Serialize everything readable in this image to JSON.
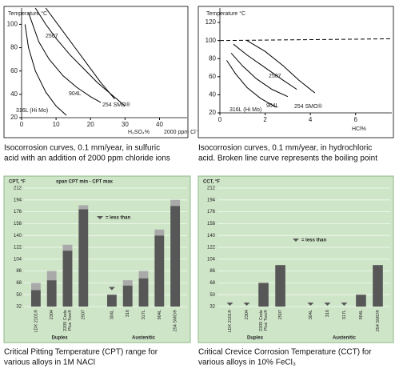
{
  "chart_data": [
    {
      "type": "line",
      "ylabel": "Temperature °C",
      "xlabel": "H₂SO₄%",
      "xlabel2": "2000 ppm Cl⁻",
      "xlim": [
        0,
        48
      ],
      "ylim": [
        20,
        114
      ],
      "xticks": [
        0,
        10,
        20,
        30,
        40
      ],
      "yticks": [
        20,
        40,
        60,
        80,
        100
      ],
      "caption": [
        "Isocorrosion curves, 0.1 mm/year, in sulfuric",
        "acid with an addition of 2000 ppm chloride ions"
      ],
      "series": [
        {
          "name": "2507",
          "color": "#000000",
          "x": [
            4,
            7,
            10,
            14,
            18,
            22,
            26,
            30
          ],
          "values": [
            114,
            100,
            88,
            74,
            62,
            50,
            40,
            30
          ]
        },
        {
          "name": "904L",
          "color": "#000000",
          "x": [
            2,
            5,
            8,
            12,
            16,
            20,
            23
          ],
          "values": [
            110,
            85,
            70,
            56,
            46,
            38,
            33
          ]
        },
        {
          "name": "316L (Hi Mo)",
          "color": "#000000",
          "x": [
            1,
            2,
            4,
            7,
            10,
            13
          ],
          "values": [
            100,
            80,
            60,
            42,
            30,
            22
          ]
        },
        {
          "name": "254 SMO®",
          "color": "#000000",
          "x": [
            7,
            11,
            15,
            19,
            23,
            27
          ],
          "values": [
            114,
            98,
            82,
            66,
            50,
            36
          ]
        }
      ]
    },
    {
      "type": "line",
      "ylabel": "Temperature °C",
      "xlabel": "HCl%",
      "xlim": [
        0,
        7.6
      ],
      "ylim": [
        20,
        136
      ],
      "xticks": [
        0,
        2,
        4,
        6
      ],
      "yticks": [
        20,
        40,
        60,
        80,
        100,
        120
      ],
      "caption": [
        "Isocorrosion curves, 0.1 mm/year, in hydrochloric",
        "acid. Broken line curve represents the boiling point"
      ],
      "series": [
        {
          "color": "#000000",
          "dashed": true,
          "x": [
            0,
            2,
            4,
            6,
            7.6
          ],
          "values": [
            100,
            100.5,
            101,
            101.5,
            102
          ]
        },
        {
          "name": "2507",
          "color": "#000000",
          "x": [
            0.6,
            1.2,
            2,
            2.8,
            3.4
          ],
          "values": [
            96,
            84,
            70,
            56,
            46
          ]
        },
        {
          "name": "904L",
          "color": "#000000",
          "x": [
            0.5,
            1,
            1.6,
            2.3,
            3
          ],
          "values": [
            86,
            72,
            58,
            46,
            38
          ]
        },
        {
          "name": "316L (Hi Mo)",
          "color": "#000000",
          "x": [
            0.3,
            0.7,
            1.2,
            1.8,
            2.5
          ],
          "values": [
            78,
            63,
            48,
            36,
            26
          ]
        },
        {
          "name": "254 SMO®",
          "color": "#000000",
          "x": [
            1.2,
            2,
            2.8,
            3.5,
            4.2
          ],
          "values": [
            100,
            88,
            72,
            56,
            42
          ]
        }
      ]
    },
    {
      "type": "bar",
      "ylabel": "CPT, °F",
      "span_label": "span CPT min - CPT max",
      "less_than_label": "= less than",
      "color": "#575757",
      "range_color": "#a9a9a9",
      "ylim": [
        32,
        212
      ],
      "yticks": [
        32,
        50,
        68,
        86,
        104,
        122,
        140,
        158,
        176,
        194,
        212
      ],
      "caption": [
        "Critical Pitting Temperature (CPT) range for",
        "various alloys in 1M NACl"
      ],
      "groups": [
        {
          "name": "Duplex",
          "categories": [
            "LDX 2101®",
            "2304",
            [
              "2205 Code",
              "Plus Two®"
            ],
            "2507"
          ],
          "values": [
            57,
            72,
            117,
            180
          ],
          "max_values": [
            68,
            86,
            126,
            186
          ],
          "less_than": [
            false,
            false,
            false,
            false
          ]
        },
        {
          "name": "Austenitic",
          "categories": [
            "304L",
            "316",
            "317L",
            "904L",
            "254 SMO®"
          ],
          "values": [
            50,
            64,
            75,
            140,
            185
          ],
          "max_values": [
            57,
            72,
            86,
            149,
            194
          ],
          "less_than": [
            true,
            false,
            false,
            false,
            false
          ]
        }
      ]
    },
    {
      "type": "bar",
      "ylabel": "CCT, °F",
      "less_than_label": "= less than",
      "color": "#575757",
      "ylim": [
        32,
        212
      ],
      "yticks": [
        32,
        50,
        68,
        86,
        104,
        122,
        140,
        158,
        176,
        194,
        212
      ],
      "caption": [
        "Critical Crevice Corrosion Temperature (CCT) for",
        "various alloys in 10% FeCl₃"
      ],
      "groups": [
        {
          "name": "Duplex",
          "categories": [
            "LDX 2101®",
            "2304",
            [
              "2205 Code",
              "Plus Two®"
            ],
            "2507"
          ],
          "values": [
            32,
            32,
            68,
            95
          ],
          "less_than": [
            true,
            true,
            false,
            false
          ]
        },
        {
          "name": "Austenitic",
          "categories": [
            "304L",
            "316",
            "317L",
            "904L",
            "254 SMO®"
          ],
          "values": [
            32,
            32,
            32,
            50,
            95
          ],
          "less_than": [
            true,
            true,
            true,
            false,
            false
          ]
        }
      ]
    }
  ]
}
